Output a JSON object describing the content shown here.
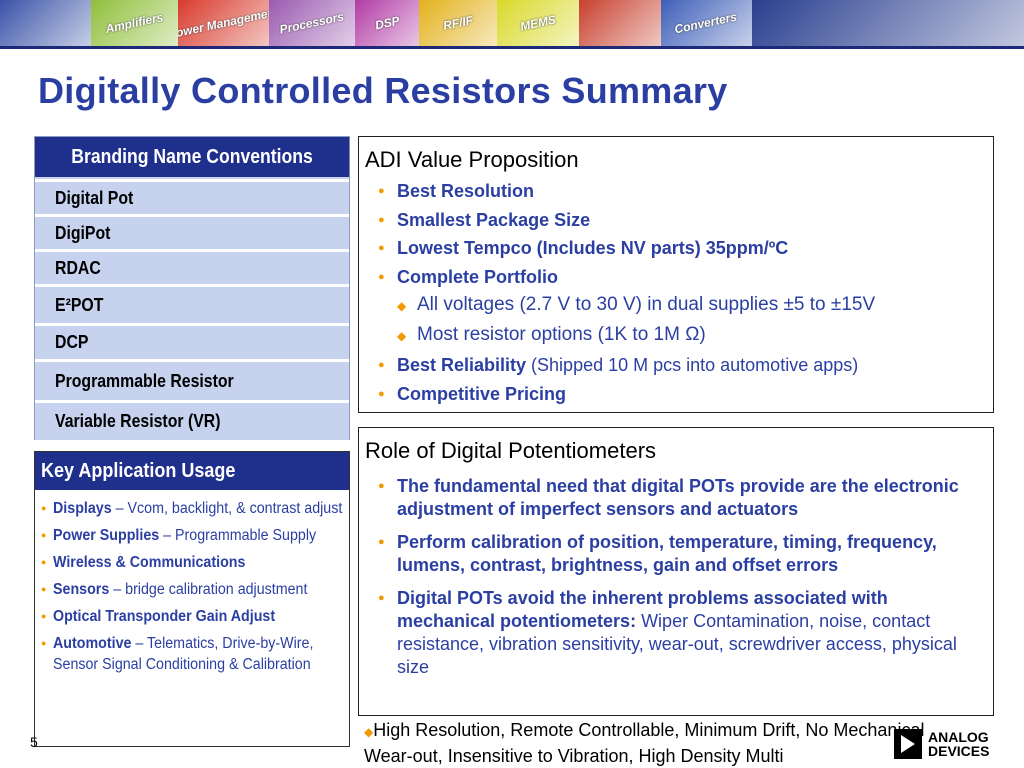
{
  "banner": {
    "segments": [
      {
        "label": "",
        "color": "#3a53a8"
      },
      {
        "label": "Amplifiers",
        "color": "#8fbf3a"
      },
      {
        "label": "Power Management",
        "color": "#d83a2c"
      },
      {
        "label": "Processors",
        "color": "#9a5ab0"
      },
      {
        "label": "DSP",
        "color": "#b23ba5"
      },
      {
        "label": "RF/IF",
        "color": "#e2b21c"
      },
      {
        "label": "MEMS",
        "color": "#d9d92a"
      },
      {
        "label": "",
        "color": "#c8402e"
      },
      {
        "label": "Converters",
        "color": "#3e5fb8"
      },
      {
        "label": "",
        "color": "#2a3f8f"
      }
    ]
  },
  "title": "Digitally Controlled Resistors Summary",
  "branding": {
    "heading": "Branding Name Conventions",
    "items": [
      "Digital Pot",
      "DigiPot",
      "RDAC",
      "E²POT",
      "DCP",
      "Programmable Resistor",
      "Variable Resistor (VR)"
    ]
  },
  "key_application": {
    "heading": "Key Application Usage",
    "items": [
      {
        "bold": "Displays",
        "rest": " – Vcom, backlight, & contrast adjust"
      },
      {
        "bold": "Power Supplies",
        "rest": " – Programmable Supply"
      },
      {
        "bold": "Wireless & Communications",
        "rest": ""
      },
      {
        "bold": "Sensors",
        "rest": " – bridge calibration adjustment"
      },
      {
        "bold": "Optical Transponder Gain Adjust",
        "rest": ""
      },
      {
        "bold": "Automotive",
        "rest": " – Telematics, Drive-by-Wire, Sensor Signal Conditioning & Calibration"
      }
    ]
  },
  "value_proposition": {
    "heading": "ADI Value Proposition",
    "items": [
      {
        "type": "main",
        "bold": "Best Resolution",
        "rest": ""
      },
      {
        "type": "main",
        "bold": "Smallest Package Size",
        "rest": ""
      },
      {
        "type": "main",
        "bold": "Lowest Tempco (Includes NV parts) 35ppm/ºC",
        "rest": ""
      },
      {
        "type": "main",
        "bold": "Complete Portfolio",
        "rest": ""
      },
      {
        "type": "sub",
        "bold": "",
        "rest": "All voltages (2.7 V to 30 V) in dual supplies ±5 to ±15V"
      },
      {
        "type": "sub",
        "bold": "",
        "rest": "Most resistor options (1K to 1M Ω)"
      },
      {
        "type": "main",
        "bold": "Best Reliability",
        "rest": " (Shipped 10 M pcs into automotive apps)"
      },
      {
        "type": "main",
        "bold": "Competitive Pricing",
        "rest": ""
      }
    ]
  },
  "role": {
    "heading": "Role of Digital Potentiometers",
    "items": [
      {
        "bold": "The fundamental need that digital POTs provide are the electronic adjustment of imperfect sensors and actuators",
        "rest": ""
      },
      {
        "bold": "Perform calibration of position, temperature, timing, frequency, lumens, contrast, brightness, gain and offset errors",
        "rest": ""
      },
      {
        "bold": "Digital POTs avoid the inherent problems associated with mechanical potentiometers:",
        "rest": "  Wiper Contamination, noise, contact resistance, vibration sensitivity, wear-out, screwdriver access, physical size"
      }
    ]
  },
  "footer": {
    "text": "High Resolution, Remote Controllable, Minimum Drift, No Mechanical Wear-out, Insensitive to Vibration, High Density Multi",
    "page": "5"
  },
  "logo": {
    "line1": "ANALOG",
    "line2": "DEVICES"
  },
  "colors": {
    "accent_blue": "#2b3fa3",
    "header_navy": "#1f2f8c",
    "bullet_orange": "#f29a00",
    "panel_lavender": "#c7d2ef"
  }
}
